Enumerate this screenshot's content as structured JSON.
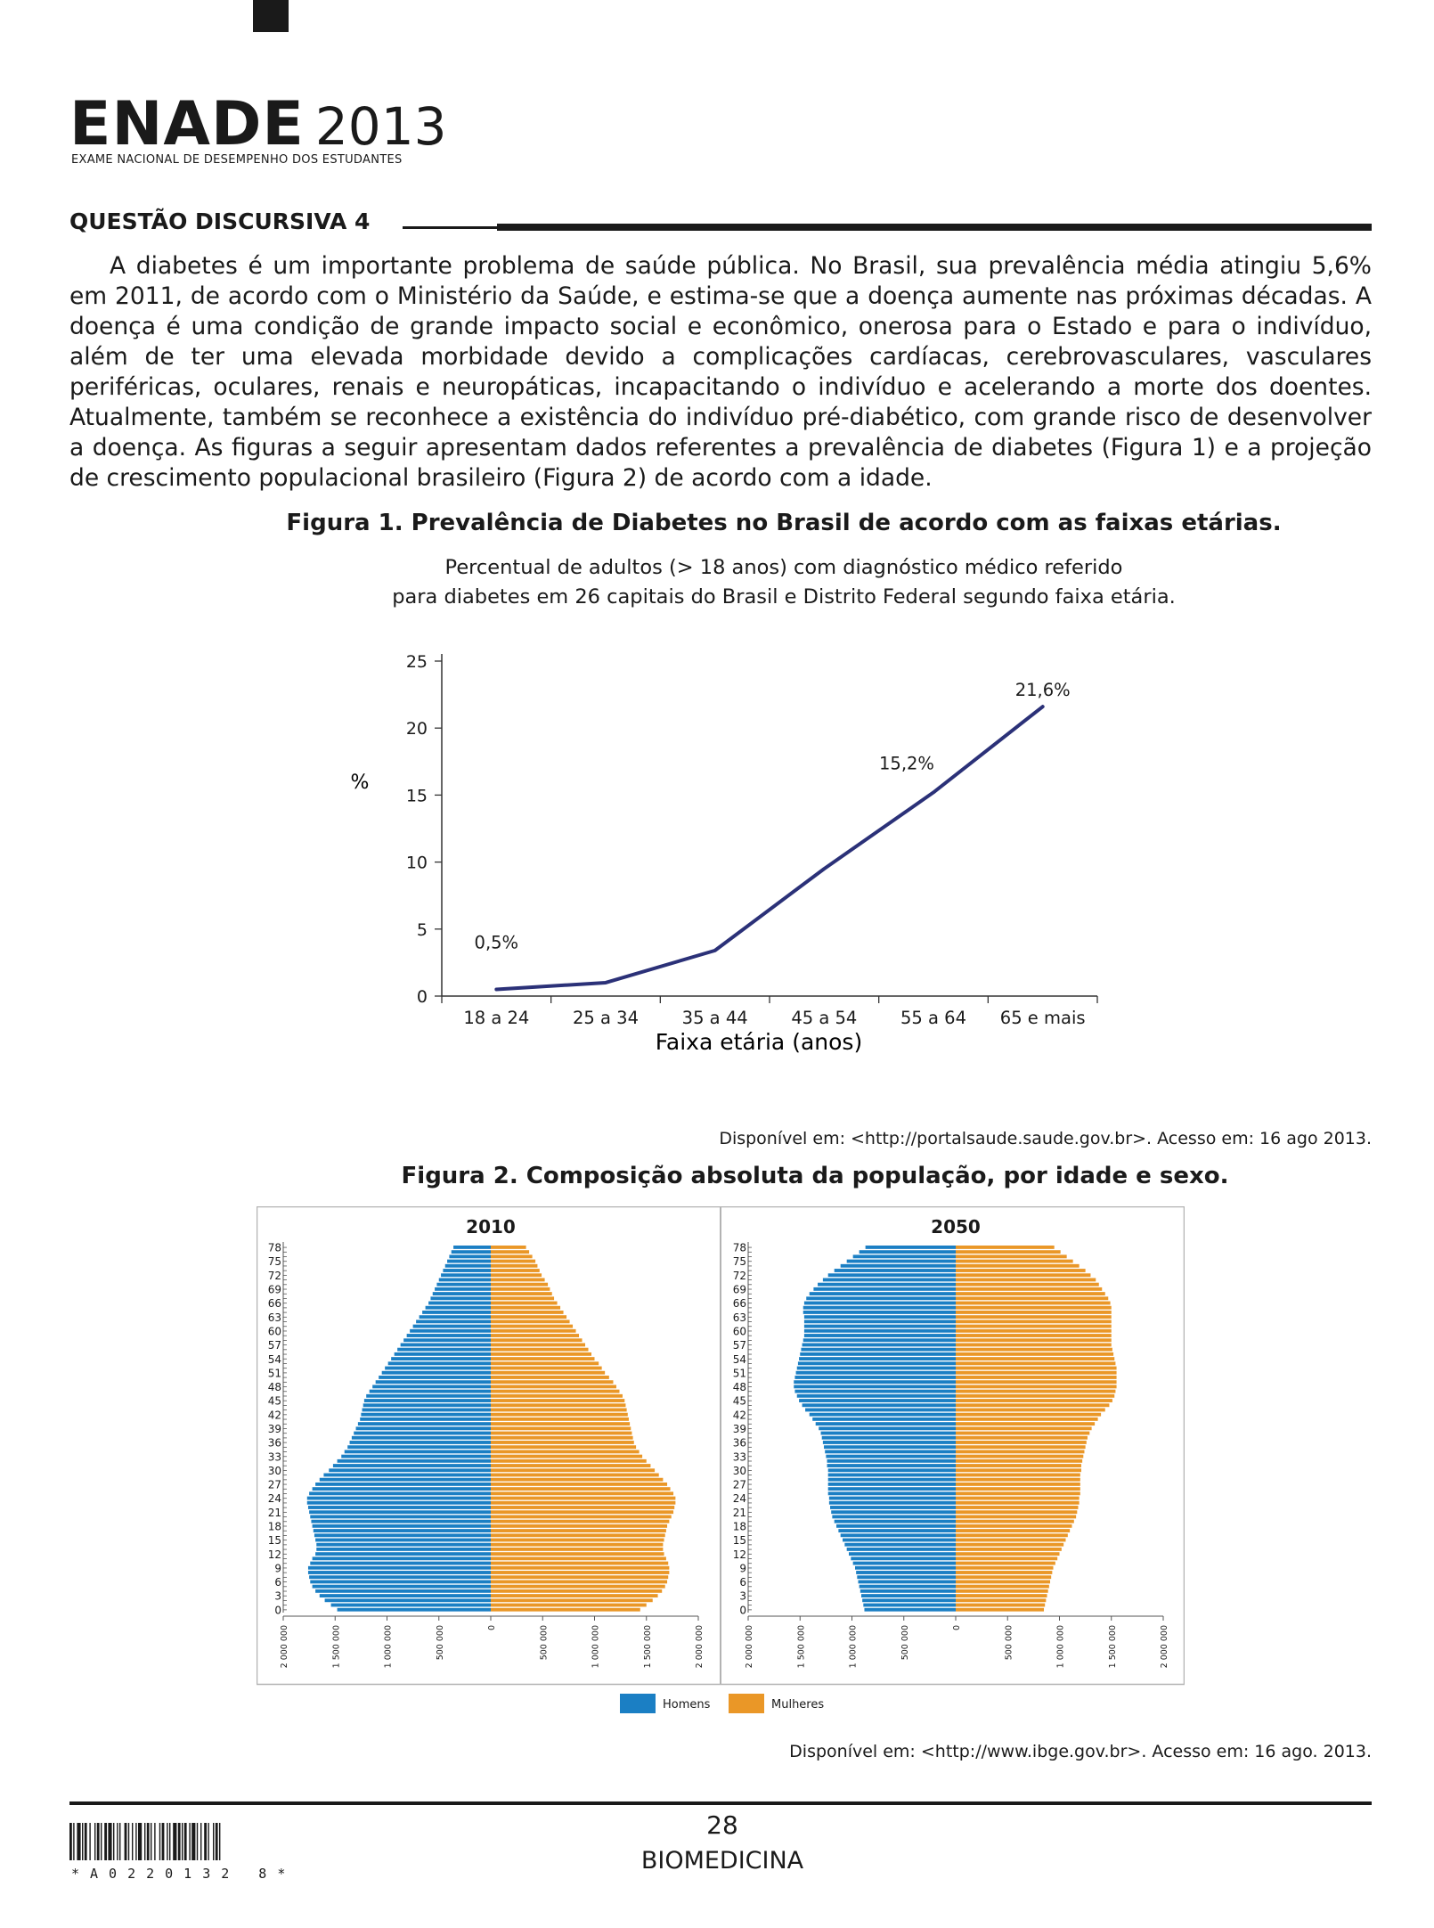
{
  "header": {
    "logo_word": "ENADE",
    "logo_year": "2013",
    "logo_subtitle": "EXAME NACIONAL DE DESEMPENHO DOS ESTUDANTES"
  },
  "question": {
    "title": "QUESTÃO DISCURSIVA 4",
    "paragraph": "A diabetes é um importante problema de saúde pública. No Brasil, sua prevalência média atingiu 5,6% em 2011, de acordo com o Ministério da Saúde, e estima-se que a doença aumente nas próximas décadas. A doença é uma condição de grande impacto social e econômico, onerosa para o Estado e para o indivíduo, além de ter uma elevada morbidade devido a complicações cardíacas, cerebrovasculares, vasculares periféricas, oculares, renais e neuropáticas, incapacitando o indivíduo e acelerando a morte dos doentes. Atualmente, também se reconhece a existência do indivíduo pré-diabético, com grande risco de desenvolver a doença. As figuras a seguir apresentam dados referentes a prevalência de diabetes (Figura 1) e a projeção de crescimento populacional brasileiro (Figura 2) de acordo com a idade."
  },
  "figure1": {
    "title": "Figura 1. Prevalência de Diabetes no Brasil de acordo com as faixas etárias.",
    "subtitle_line1": "Percentual de adultos (> 18 anos) com diagnóstico médico referido",
    "subtitle_line2": "para diabetes em 26 capitais do Brasil e Distrito Federal segundo faixa etária.",
    "source": "Disponível em: <http://portalsaude.saude.gov.br>. Acesso em: 16 ago 2013."
  },
  "figure2": {
    "title": "Figura 2. Composição absoluta da população, por idade e sexo.",
    "source": "Disponível em: <http://www.ibge.gov.br>. Acesso em: 16 ago. 2013."
  },
  "footer": {
    "page_number": "28",
    "course": "BIOMEDICINA",
    "barcode_text": "*A0220132 8*"
  },
  "chart_data": [
    {
      "type": "line",
      "categories": [
        "18 a 24",
        "25 a 34",
        "35 a 44",
        "45 a 54",
        "55 a 64",
        "65 e mais"
      ],
      "values": [
        0.5,
        1.0,
        3.4,
        9.5,
        15.2,
        21.6
      ],
      "data_labels": [
        {
          "index": 0,
          "text": "0,5%"
        },
        {
          "index": 4,
          "text": "15,2%"
        },
        {
          "index": 5,
          "text": "21,6%"
        }
      ],
      "xlabel": "Faixa etária (anos)",
      "ylabel": "%",
      "ylim": [
        0,
        25
      ],
      "yticks": [
        "0",
        "5",
        "10",
        "15",
        "20",
        "25"
      ],
      "line_color": "#2b3178",
      "grid": false
    },
    {
      "type": "bar",
      "orientation": "horizontal-pyramid",
      "panels": [
        {
          "title": "2010",
          "ages": [
            0,
            1,
            2,
            3,
            4,
            5,
            6,
            7,
            8,
            9,
            10,
            11,
            12,
            13,
            14,
            15,
            16,
            17,
            18,
            19,
            20,
            21,
            22,
            23,
            24,
            25,
            26,
            27,
            28,
            29,
            30,
            31,
            32,
            33,
            34,
            35,
            36,
            37,
            38,
            39,
            40,
            41,
            42,
            43,
            44,
            45,
            46,
            47,
            48,
            49,
            50,
            51,
            52,
            53,
            54,
            55,
            56,
            57,
            58,
            59,
            60,
            61,
            62,
            63,
            64,
            65,
            66,
            67,
            68,
            69,
            70,
            71,
            72,
            73,
            74,
            75,
            76,
            77,
            78
          ],
          "men": [
            1480000,
            1540000,
            1600000,
            1650000,
            1690000,
            1720000,
            1740000,
            1750000,
            1760000,
            1760000,
            1740000,
            1720000,
            1690000,
            1680000,
            1680000,
            1690000,
            1700000,
            1710000,
            1720000,
            1730000,
            1740000,
            1750000,
            1760000,
            1770000,
            1770000,
            1750000,
            1720000,
            1690000,
            1650000,
            1610000,
            1560000,
            1520000,
            1480000,
            1440000,
            1410000,
            1380000,
            1360000,
            1340000,
            1320000,
            1300000,
            1280000,
            1260000,
            1250000,
            1240000,
            1230000,
            1220000,
            1200000,
            1170000,
            1140000,
            1110000,
            1080000,
            1050000,
            1020000,
            990000,
            960000,
            930000,
            900000,
            870000,
            840000,
            810000,
            780000,
            750000,
            720000,
            690000,
            660000,
            630000,
            600000,
            580000,
            560000,
            540000,
            520000,
            500000,
            480000,
            460000,
            440000,
            420000,
            400000,
            380000,
            360000
          ],
          "women": [
            1440000,
            1500000,
            1560000,
            1610000,
            1650000,
            1680000,
            1700000,
            1710000,
            1720000,
            1720000,
            1710000,
            1690000,
            1670000,
            1660000,
            1660000,
            1670000,
            1680000,
            1690000,
            1700000,
            1720000,
            1740000,
            1760000,
            1770000,
            1780000,
            1780000,
            1760000,
            1730000,
            1700000,
            1660000,
            1620000,
            1580000,
            1540000,
            1500000,
            1460000,
            1430000,
            1400000,
            1380000,
            1370000,
            1360000,
            1350000,
            1340000,
            1330000,
            1320000,
            1310000,
            1300000,
            1290000,
            1270000,
            1240000,
            1210000,
            1180000,
            1140000,
            1100000,
            1070000,
            1040000,
            1000000,
            970000,
            940000,
            910000,
            880000,
            850000,
            820000,
            790000,
            760000,
            730000,
            700000,
            670000,
            640000,
            610000,
            590000,
            570000,
            550000,
            520000,
            490000,
            470000,
            450000,
            430000,
            400000,
            370000,
            340000
          ]
        },
        {
          "title": "2050",
          "ages": [
            0,
            1,
            2,
            3,
            4,
            5,
            6,
            7,
            8,
            9,
            10,
            11,
            12,
            13,
            14,
            15,
            16,
            17,
            18,
            19,
            20,
            21,
            22,
            23,
            24,
            25,
            26,
            27,
            28,
            29,
            30,
            31,
            32,
            33,
            34,
            35,
            36,
            37,
            38,
            39,
            40,
            41,
            42,
            43,
            44,
            45,
            46,
            47,
            48,
            49,
            50,
            51,
            52,
            53,
            54,
            55,
            56,
            57,
            58,
            59,
            60,
            61,
            62,
            63,
            64,
            65,
            66,
            67,
            68,
            69,
            70,
            71,
            72,
            73,
            74,
            75,
            76,
            77,
            78
          ],
          "men": [
            880000,
            890000,
            900000,
            910000,
            920000,
            930000,
            940000,
            950000,
            960000,
            970000,
            990000,
            1010000,
            1030000,
            1050000,
            1070000,
            1090000,
            1110000,
            1130000,
            1150000,
            1170000,
            1190000,
            1200000,
            1210000,
            1220000,
            1220000,
            1230000,
            1230000,
            1230000,
            1230000,
            1230000,
            1230000,
            1240000,
            1240000,
            1250000,
            1260000,
            1270000,
            1280000,
            1290000,
            1300000,
            1320000,
            1350000,
            1380000,
            1410000,
            1450000,
            1480000,
            1510000,
            1530000,
            1550000,
            1560000,
            1560000,
            1550000,
            1540000,
            1530000,
            1520000,
            1510000,
            1500000,
            1490000,
            1480000,
            1470000,
            1460000,
            1460000,
            1460000,
            1460000,
            1460000,
            1470000,
            1470000,
            1460000,
            1440000,
            1410000,
            1370000,
            1330000,
            1280000,
            1230000,
            1170000,
            1110000,
            1050000,
            990000,
            930000,
            870000
          ],
          "women": [
            850000,
            860000,
            870000,
            880000,
            890000,
            900000,
            910000,
            920000,
            930000,
            940000,
            960000,
            980000,
            1000000,
            1020000,
            1040000,
            1060000,
            1080000,
            1100000,
            1120000,
            1140000,
            1160000,
            1170000,
            1180000,
            1190000,
            1190000,
            1200000,
            1200000,
            1200000,
            1200000,
            1200000,
            1210000,
            1210000,
            1220000,
            1230000,
            1240000,
            1250000,
            1260000,
            1270000,
            1290000,
            1310000,
            1340000,
            1370000,
            1400000,
            1440000,
            1480000,
            1510000,
            1530000,
            1540000,
            1550000,
            1550000,
            1550000,
            1550000,
            1550000,
            1540000,
            1530000,
            1520000,
            1510000,
            1500000,
            1500000,
            1500000,
            1500000,
            1500000,
            1500000,
            1500000,
            1500000,
            1500000,
            1490000,
            1470000,
            1440000,
            1410000,
            1380000,
            1350000,
            1300000,
            1250000,
            1190000,
            1130000,
            1070000,
            1010000,
            950000
          ]
        }
      ],
      "age_tick_labels": [
        "0",
        "3",
        "6",
        "9",
        "12",
        "15",
        "18",
        "21",
        "24",
        "27",
        "30",
        "33",
        "36",
        "39",
        "42",
        "45",
        "48",
        "51",
        "54",
        "57",
        "60",
        "63",
        "66",
        "69",
        "72",
        "75",
        "78"
      ],
      "x_tick_labels": [
        "2 000 000",
        "1 500 000",
        "1 000 000",
        "500 000",
        "0",
        "500 000",
        "1 000 000",
        "1 500 000",
        "2 000 000"
      ],
      "xlim": [
        -2000000,
        2000000
      ],
      "legend": [
        {
          "name": "Homens",
          "color": "#1b7fc4"
        },
        {
          "name": "Mulheres",
          "color": "#ea9727"
        }
      ],
      "legend_placement": "bottom-center"
    }
  ]
}
